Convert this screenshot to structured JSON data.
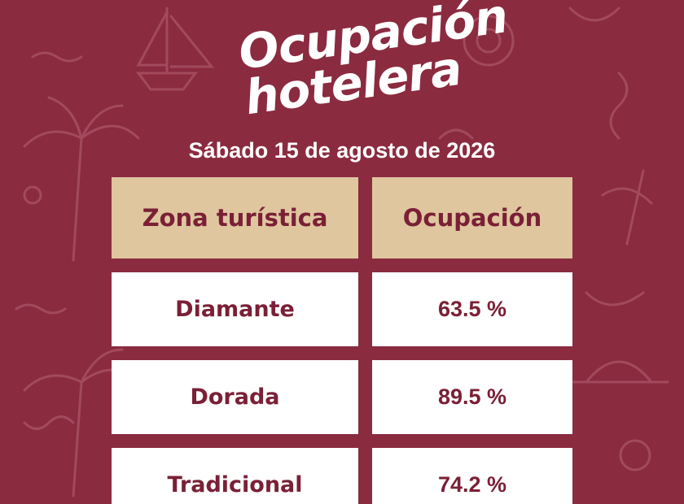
{
  "title": [
    "Ocupación",
    "hotelera"
  ],
  "date": "Sábado 15 de agosto de 2026",
  "table": {
    "header": [
      "Zona turística",
      "Ocupación"
    ],
    "rows": [
      [
        "Diamante",
        "63.5 %"
      ],
      [
        "Dorada",
        "89.5 %"
      ],
      [
        "Tradicional",
        "74.2 %"
      ]
    ]
  }
}
